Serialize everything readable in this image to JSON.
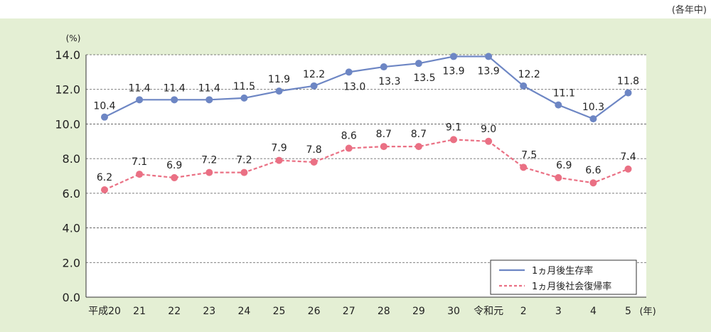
{
  "note": "(各年中)",
  "chart_data": {
    "type": "line",
    "ylabel": "(%)",
    "xunit": "(年)",
    "ylim": [
      0,
      14
    ],
    "yticks": [
      "0.0",
      "2.0",
      "4.0",
      "6.0",
      "8.0",
      "10.0",
      "12.0",
      "14.0"
    ],
    "categories": [
      "平成20",
      "21",
      "22",
      "23",
      "24",
      "25",
      "26",
      "27",
      "28",
      "29",
      "30",
      "令和元",
      "2",
      "3",
      "4",
      "5"
    ],
    "grid": true,
    "legend_position": "bottom-right",
    "series": [
      {
        "name": "1ヵ月後生存率",
        "color": "#6d86c4",
        "style": "solid",
        "values": [
          10.4,
          11.4,
          11.4,
          11.4,
          11.5,
          11.9,
          12.2,
          13.0,
          13.3,
          13.5,
          13.9,
          13.9,
          12.2,
          11.1,
          10.3,
          11.8
        ],
        "labels": [
          "10.4",
          "11.4",
          "11.4",
          "11.4",
          "11.5",
          "11.9",
          "12.2",
          "13.0",
          "13.3",
          "13.5",
          "13.9",
          "13.9",
          "12.2",
          "11.1",
          "10.3",
          "11.8"
        ]
      },
      {
        "name": "1ヵ月後社会復帰率",
        "color": "#ea7084",
        "style": "dashed",
        "values": [
          6.2,
          7.1,
          6.9,
          7.2,
          7.2,
          7.9,
          7.8,
          8.6,
          8.7,
          8.7,
          9.1,
          9.0,
          7.5,
          6.9,
          6.6,
          7.4
        ],
        "labels": [
          "6.2",
          "7.1",
          "6.9",
          "7.2",
          "7.2",
          "7.9",
          "7.8",
          "8.6",
          "8.7",
          "8.7",
          "9.1",
          "9.0",
          "7.5",
          "6.9",
          "6.6",
          "7.4"
        ]
      }
    ]
  }
}
